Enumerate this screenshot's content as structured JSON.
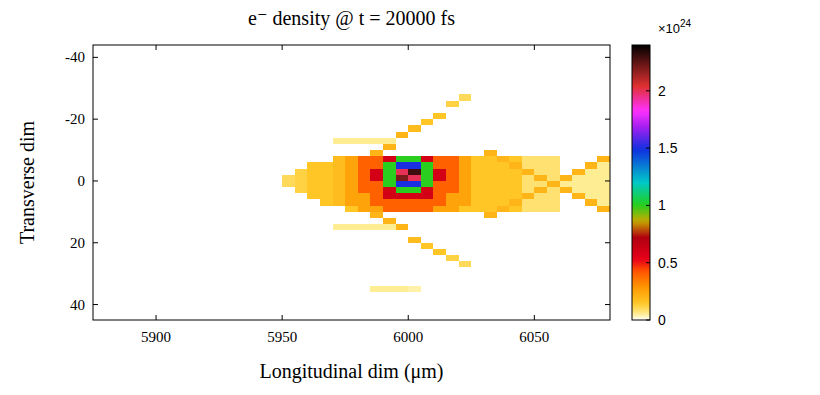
{
  "chart_data": {
    "type": "heatmap",
    "title": "e⁻ density @ t = 20000 fs",
    "xlabel": "Longitudinal dim (μm)",
    "ylabel": "Transverse dim",
    "xlim": [
      5875,
      6080
    ],
    "ylim": [
      -44,
      45
    ],
    "xticks": [
      5900,
      5950,
      6000,
      6050
    ],
    "yticks": [
      -40,
      -20,
      0,
      20,
      40
    ],
    "x_edges": [
      5940,
      5945,
      5950,
      5955,
      5960,
      5965,
      5970,
      5975,
      5980,
      5985,
      5990,
      5995,
      6000,
      6005,
      6010,
      6015,
      6020,
      6025,
      6030,
      6035,
      6040,
      6045,
      6050,
      6055,
      6060,
      6065,
      6070,
      6075,
      6080
    ],
    "y_edges": [
      -30,
      -28,
      -26,
      -24,
      -22,
      -20,
      -18,
      -16,
      -14,
      -12,
      -10,
      -8,
      -6,
      -4,
      -2,
      0,
      2,
      4,
      6,
      8,
      10,
      12,
      14,
      16,
      18,
      20,
      22,
      24,
      26,
      28,
      30,
      32,
      34,
      36,
      38
    ],
    "cells": [
      [
        0,
        0,
        0,
        0,
        0,
        0,
        0,
        0,
        0,
        0,
        0,
        0,
        0,
        0,
        0,
        0,
        0,
        0,
        0,
        0,
        0,
        0,
        0,
        0,
        0,
        0,
        0,
        0
      ],
      [
        0,
        0,
        0,
        0,
        0,
        0,
        0,
        0,
        0,
        0,
        0,
        0,
        0,
        0,
        0,
        0,
        0.1,
        0,
        0,
        0,
        0,
        0,
        0,
        0,
        0,
        0,
        0,
        0
      ],
      [
        0,
        0,
        0,
        0,
        0,
        0,
        0,
        0,
        0,
        0,
        0,
        0,
        0,
        0,
        0,
        0.12,
        0,
        0,
        0,
        0,
        0,
        0,
        0,
        0,
        0,
        0,
        0,
        0
      ],
      [
        0,
        0,
        0,
        0,
        0,
        0,
        0,
        0,
        0,
        0,
        0,
        0,
        0,
        0,
        0,
        0,
        0,
        0,
        0,
        0,
        0,
        0,
        0,
        0,
        0,
        0,
        0,
        0
      ],
      [
        0,
        0,
        0,
        0,
        0,
        0,
        0,
        0,
        0,
        0,
        0,
        0,
        0,
        0,
        0.15,
        0,
        0,
        0,
        0,
        0,
        0,
        0,
        0,
        0,
        0,
        0,
        0,
        0
      ],
      [
        0,
        0,
        0,
        0,
        0,
        0,
        0,
        0,
        0,
        0,
        0,
        0,
        0,
        0.15,
        0,
        0,
        0,
        0,
        0,
        0,
        0,
        0,
        0,
        0,
        0,
        0,
        0,
        0
      ],
      [
        0,
        0,
        0,
        0,
        0,
        0,
        0,
        0,
        0,
        0,
        0,
        0,
        0.18,
        0,
        0,
        0,
        0,
        0,
        0,
        0,
        0,
        0,
        0,
        0,
        0,
        0,
        0,
        0
      ],
      [
        0,
        0,
        0,
        0,
        0,
        0,
        0,
        0,
        0,
        0,
        0,
        0.2,
        0,
        0,
        0,
        0,
        0,
        0,
        0,
        0,
        0,
        0,
        0,
        0,
        0,
        0,
        0,
        0
      ],
      [
        0,
        0,
        0,
        0,
        0,
        0,
        0.05,
        0.05,
        0.05,
        0.05,
        0.05,
        0,
        0,
        0,
        0,
        0,
        0,
        0,
        0,
        0,
        0,
        0,
        0,
        0,
        0,
        0,
        0,
        0
      ],
      [
        0,
        0,
        0,
        0,
        0,
        0,
        0,
        0,
        0,
        0,
        0.2,
        0,
        0,
        0,
        0,
        0,
        0,
        0,
        0,
        0,
        0,
        0,
        0,
        0,
        0,
        0,
        0,
        0
      ],
      [
        0,
        0,
        0,
        0,
        0,
        0,
        0,
        0,
        0,
        0.2,
        0,
        0,
        0,
        0,
        0,
        0,
        0,
        0,
        0.2,
        0,
        0,
        0,
        0,
        0,
        0,
        0,
        0,
        0
      ],
      [
        0,
        0,
        0,
        0,
        0,
        0,
        0.18,
        0.25,
        0.4,
        0.4,
        0.6,
        1,
        1,
        0.6,
        0.4,
        0.4,
        0.25,
        0.15,
        0.15,
        0.2,
        0.15,
        0.08,
        0.08,
        0.08,
        0,
        0,
        0,
        0.2
      ],
      [
        0,
        0,
        0,
        0,
        0.15,
        0.15,
        0.18,
        0.25,
        0.4,
        0.4,
        1,
        1.5,
        1.5,
        1,
        0.4,
        0.4,
        0.25,
        0.15,
        0.15,
        0.15,
        0.2,
        0.08,
        0.08,
        0.08,
        0,
        0,
        0.2,
        0.05
      ],
      [
        0,
        0,
        0,
        0.12,
        0.15,
        0.15,
        0.18,
        0.25,
        0.4,
        0.6,
        1,
        2,
        2.3,
        1,
        0.6,
        0.4,
        0.25,
        0.15,
        0.15,
        0.15,
        0.15,
        0.2,
        0.08,
        0.08,
        0,
        0.2,
        0.05,
        0.05
      ],
      [
        0,
        0,
        0.1,
        0.12,
        0.15,
        0.15,
        0.18,
        0.25,
        0.4,
        0.6,
        1,
        2.2,
        2,
        1,
        0.6,
        0.4,
        0.25,
        0.15,
        0.15,
        0.15,
        0.15,
        0.08,
        0.2,
        0.08,
        0.2,
        0.05,
        0.05,
        0.05
      ],
      [
        0,
        0,
        0.1,
        0.12,
        0.15,
        0.15,
        0.18,
        0.25,
        0.4,
        0.4,
        1,
        1.5,
        1.5,
        1,
        0.4,
        0.4,
        0.25,
        0.15,
        0.15,
        0.15,
        0.15,
        0.08,
        0.08,
        0.2,
        0.05,
        0.05,
        0.05,
        0.05
      ],
      [
        0,
        0,
        0,
        0.12,
        0.15,
        0.15,
        0.18,
        0.25,
        0.4,
        0.4,
        0.6,
        1,
        1,
        0.6,
        0.4,
        0.4,
        0.25,
        0.15,
        0.15,
        0.15,
        0.15,
        0.08,
        0.2,
        0.08,
        0.2,
        0.05,
        0.05,
        0.05
      ],
      [
        0,
        0,
        0,
        0,
        0.15,
        0.15,
        0.18,
        0.25,
        0.25,
        0.4,
        0.6,
        0.6,
        0.6,
        0.6,
        0.4,
        0.25,
        0.25,
        0.15,
        0.15,
        0.15,
        0.15,
        0.2,
        0.08,
        0.08,
        0,
        0.2,
        0.05,
        0.05
      ],
      [
        0,
        0,
        0,
        0,
        0,
        0.15,
        0.18,
        0.25,
        0.25,
        0.4,
        0.4,
        0.4,
        0.4,
        0.4,
        0.4,
        0.25,
        0.25,
        0.15,
        0.15,
        0.15,
        0.2,
        0.08,
        0.08,
        0.08,
        0,
        0,
        0.2,
        0.05
      ],
      [
        0,
        0,
        0,
        0,
        0,
        0,
        0,
        0.15,
        0.25,
        0.25,
        0.4,
        0.4,
        0.4,
        0.4,
        0.25,
        0.25,
        0.15,
        0.15,
        0.15,
        0.2,
        0.15,
        0.08,
        0.08,
        0.08,
        0,
        0,
        0,
        0.2
      ],
      [
        0,
        0,
        0,
        0,
        0,
        0,
        0,
        0,
        0,
        0.2,
        0,
        0,
        0,
        0,
        0,
        0,
        0,
        0,
        0.2,
        0,
        0,
        0,
        0,
        0,
        0,
        0,
        0,
        0
      ],
      [
        0,
        0,
        0,
        0,
        0,
        0,
        0,
        0,
        0,
        0,
        0.2,
        0,
        0,
        0,
        0,
        0,
        0,
        0,
        0,
        0,
        0,
        0,
        0,
        0,
        0,
        0,
        0,
        0
      ],
      [
        0,
        0,
        0,
        0,
        0,
        0,
        0.05,
        0.05,
        0.05,
        0.05,
        0.05,
        0.2,
        0,
        0,
        0,
        0,
        0,
        0,
        0,
        0,
        0,
        0,
        0,
        0,
        0,
        0,
        0,
        0
      ],
      [
        0,
        0,
        0,
        0,
        0,
        0,
        0,
        0,
        0,
        0,
        0,
        0,
        0,
        0,
        0,
        0,
        0,
        0,
        0,
        0,
        0,
        0,
        0,
        0,
        0,
        0,
        0,
        0
      ],
      [
        0,
        0,
        0,
        0,
        0,
        0,
        0,
        0,
        0,
        0,
        0,
        0,
        0.18,
        0,
        0,
        0,
        0,
        0,
        0,
        0,
        0,
        0,
        0,
        0,
        0,
        0,
        0,
        0
      ],
      [
        0,
        0,
        0,
        0,
        0,
        0,
        0,
        0,
        0,
        0,
        0,
        0,
        0,
        0.15,
        0,
        0,
        0,
        0,
        0,
        0,
        0,
        0,
        0,
        0,
        0,
        0,
        0,
        0
      ],
      [
        0,
        0,
        0,
        0,
        0,
        0,
        0,
        0,
        0,
        0,
        0,
        0,
        0,
        0,
        0.15,
        0,
        0,
        0,
        0,
        0,
        0,
        0,
        0,
        0,
        0,
        0,
        0,
        0
      ],
      [
        0,
        0,
        0,
        0,
        0,
        0,
        0,
        0,
        0,
        0,
        0,
        0,
        0,
        0,
        0,
        0.12,
        0,
        0,
        0,
        0,
        0,
        0,
        0,
        0,
        0,
        0,
        0,
        0
      ],
      [
        0,
        0,
        0,
        0,
        0,
        0,
        0,
        0,
        0,
        0,
        0,
        0,
        0,
        0,
        0,
        0,
        0.1,
        0,
        0,
        0,
        0,
        0,
        0,
        0,
        0,
        0,
        0,
        0
      ],
      [
        0,
        0,
        0,
        0,
        0,
        0,
        0,
        0,
        0,
        0,
        0,
        0,
        0,
        0,
        0,
        0,
        0,
        0,
        0,
        0,
        0,
        0,
        0,
        0,
        0,
        0,
        0,
        0
      ],
      [
        0,
        0,
        0,
        0,
        0,
        0,
        0,
        0,
        0,
        0,
        0,
        0,
        0,
        0,
        0,
        0,
        0,
        0,
        0,
        0,
        0,
        0,
        0,
        0,
        0,
        0,
        0,
        0
      ],
      [
        0,
        0,
        0,
        0,
        0,
        0,
        0,
        0,
        0,
        0,
        0,
        0,
        0,
        0,
        0,
        0,
        0,
        0,
        0,
        0,
        0,
        0,
        0,
        0,
        0,
        0,
        0,
        0
      ],
      [
        0,
        0,
        0,
        0,
        0,
        0,
        0,
        0,
        0,
        0.05,
        0.05,
        0.05,
        0.04,
        0,
        0,
        0,
        0,
        0,
        0,
        0,
        0,
        0,
        0,
        0,
        0,
        0,
        0,
        0
      ],
      [
        0,
        0,
        0,
        0,
        0,
        0,
        0,
        0,
        0,
        0,
        0,
        0,
        0,
        0,
        0,
        0,
        0,
        0,
        0,
        0,
        0,
        0,
        0,
        0,
        0,
        0,
        0,
        0
      ]
    ],
    "colorbar": {
      "range": [
        0,
        2.4
      ],
      "ticks": [
        0,
        0.5,
        1,
        1.5,
        2
      ],
      "label": [
        "×10",
        "24"
      ]
    }
  }
}
